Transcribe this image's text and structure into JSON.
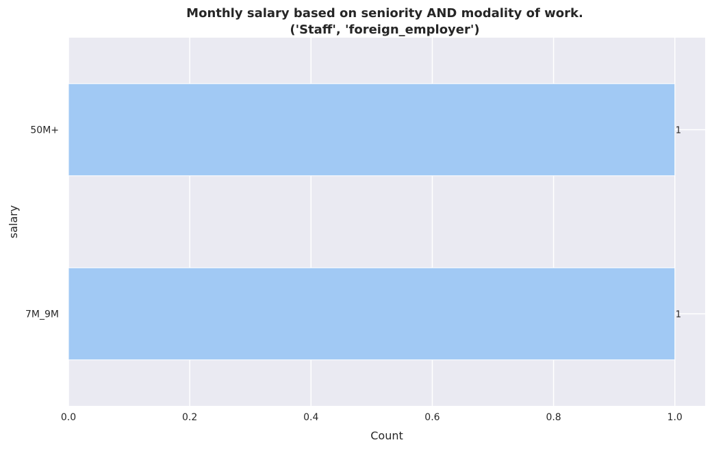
{
  "chart_data": {
    "type": "bar",
    "orientation": "horizontal",
    "title": "Monthly salary based on seniority AND modality of work.",
    "subtitle": "('Staff', 'foreign_employer')",
    "xlabel": "Count",
    "ylabel": "salary",
    "categories": [
      "50M+",
      "7M_9M"
    ],
    "values": [
      1,
      1
    ],
    "data_labels": [
      "1",
      "1"
    ],
    "xlim": [
      0,
      1.05
    ],
    "xticks": [
      0.0,
      0.2,
      0.4,
      0.6,
      0.8,
      1.0
    ],
    "xtick_labels": [
      "0.0",
      "0.2",
      "0.4",
      "0.6",
      "0.8",
      "1.0"
    ],
    "grid": true,
    "bar_color": "#a1c9f4",
    "background_color": "#eaeaf2",
    "grid_color": "#ffffff"
  }
}
